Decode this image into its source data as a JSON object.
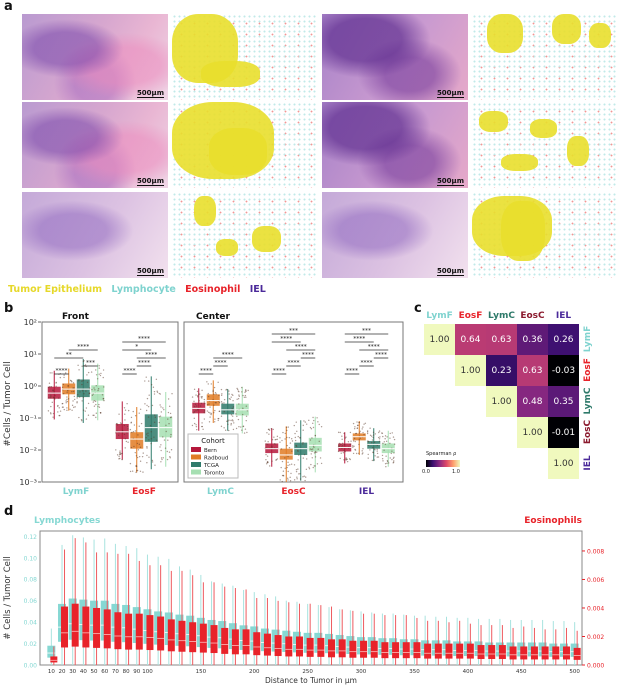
{
  "panel_labels": {
    "a": "a",
    "b": "b",
    "c": "c",
    "d": "d"
  },
  "panel_a": {
    "scale_bar": "500μm",
    "legend": [
      {
        "label": "Tumor Epithelium",
        "color": "#e6d82a"
      },
      {
        "label": "Lymphocyte",
        "color": "#7fd3cf"
      },
      {
        "label": "Eosinophil",
        "color": "#e8232a"
      },
      {
        "label": "IEL",
        "color": "#4b2a9a"
      }
    ]
  },
  "chart_data": [
    {
      "id": "panel_b",
      "type": "box",
      "ylabel": "#Cells / Tumor Cell",
      "yscale": "log",
      "ylim": [
        0.001,
        100
      ],
      "yticks": [
        "10⁻³",
        "10⁻²",
        "10⁻¹",
        "10⁰",
        "10¹",
        "10²"
      ],
      "legend_title": "Cohort",
      "legend_placement": "bottom-left",
      "cohorts": [
        {
          "name": "Bern",
          "color": "#b5173b"
        },
        {
          "name": "Radboud",
          "color": "#e07b24"
        },
        {
          "name": "TCGA",
          "color": "#2e7a6a"
        },
        {
          "name": "Toronto",
          "color": "#a6dfb2"
        }
      ],
      "facets": [
        {
          "title": "Front",
          "categories": [
            {
              "name": "LymF",
              "color": "#7fd3cf",
              "medians": [
                0.6,
                0.8,
                0.8,
                0.6
              ],
              "q1": [
                0.4,
                0.55,
                0.45,
                0.35
              ],
              "q3": [
                0.95,
                1.2,
                1.6,
                1.05
              ],
              "min": [
                0.09,
                0.17,
                0.07,
                0.085
              ],
              "max": [
                3.0,
                3.5,
                7.0,
                5.0
              ],
              "brackets": [
                [
                  "****",
                  0,
                  1
                ],
                [
                  "***",
                  2,
                  3
                ],
                [
                  "**",
                  0,
                  2
                ],
                [
                  "****",
                  1,
                  3
                ]
              ]
            },
            {
              "name": "EosF",
              "color": "#e8232a",
              "medians": [
                0.037,
                0.022,
                0.05,
                0.05
              ],
              "q1": [
                0.022,
                0.011,
                0.018,
                0.025
              ],
              "q3": [
                0.065,
                0.036,
                0.13,
                0.11
              ],
              "min": [
                0.005,
                0.002,
                0.0025,
                0.003
              ],
              "max": [
                0.33,
                0.22,
                2.0,
                0.65
              ],
              "brackets": [
                [
                  "****",
                  0,
                  1
                ],
                [
                  "****",
                  1,
                  2
                ],
                [
                  "****",
                  1,
                  3
                ],
                [
                  "*",
                  0,
                  2
                ],
                [
                  "****",
                  0,
                  3
                ]
              ]
            }
          ]
        },
        {
          "title": "Center",
          "categories": [
            {
              "name": "LymC",
              "color": "#7fd3cf",
              "medians": [
                0.2,
                0.35,
                0.18,
                0.18
              ],
              "q1": [
                0.14,
                0.24,
                0.13,
                0.12
              ],
              "q3": [
                0.3,
                0.55,
                0.28,
                0.28
              ],
              "min": [
                0.04,
                0.07,
                0.04,
                0.033
              ],
              "max": [
                0.85,
                1.5,
                0.8,
                0.95
              ],
              "brackets": [
                [
                  "****",
                  0,
                  1
                ],
                [
                  "****",
                  1,
                  2
                ],
                [
                  "****",
                  1,
                  3
                ]
              ]
            },
            {
              "name": "EosC",
              "color": "#e8232a",
              "medians": [
                0.011,
                0.007,
                0.011,
                0.014
              ],
              "q1": [
                0.008,
                0.005,
                0.007,
                0.009
              ],
              "q3": [
                0.016,
                0.011,
                0.017,
                0.024
              ],
              "min": [
                0.003,
                0.001,
                0.0011,
                0.002
              ],
              "max": [
                0.048,
                0.055,
                0.085,
                0.11
              ],
              "brackets": [
                [
                  "****",
                  0,
                  1
                ],
                [
                  "****",
                  1,
                  2
                ],
                [
                  "****",
                  2,
                  3
                ],
                [
                  "****",
                  1,
                  3
                ],
                [
                  "****",
                  0,
                  2
                ],
                [
                  "***",
                  0,
                  3
                ]
              ]
            },
            {
              "name": "IEL",
              "color": "#4b2a9a",
              "medians": [
                0.012,
                0.026,
                0.015,
                0.011
              ],
              "q1": [
                0.009,
                0.02,
                0.011,
                0.008
              ],
              "q3": [
                0.016,
                0.033,
                0.019,
                0.016
              ],
              "min": [
                0.0038,
                0.007,
                0.0045,
                0.003
              ],
              "max": [
                0.036,
                0.08,
                0.048,
                0.04
              ],
              "brackets": [
                [
                  "****",
                  0,
                  1
                ],
                [
                  "****",
                  1,
                  2
                ],
                [
                  "****",
                  2,
                  3
                ],
                [
                  "****",
                  1,
                  3
                ],
                [
                  "****",
                  0,
                  2
                ],
                [
                  "***",
                  0,
                  3
                ]
              ]
            }
          ]
        }
      ]
    },
    {
      "id": "panel_c",
      "type": "heatmap",
      "labels": [
        "LymF",
        "EosF",
        "LymC",
        "EosC",
        "IEL"
      ],
      "label_colors": [
        "#7fd3cf",
        "#e8232a",
        "#2e7a6a",
        "#8b1a2e",
        "#4b2a9a"
      ],
      "matrix": [
        [
          1.0,
          0.64,
          0.63,
          0.36,
          0.26
        ],
        [
          null,
          1.0,
          0.23,
          0.63,
          -0.03
        ],
        [
          null,
          null,
          1.0,
          0.48,
          0.35
        ],
        [
          null,
          null,
          null,
          1.0,
          -0.01
        ],
        [
          null,
          null,
          null,
          null,
          1.0
        ]
      ],
      "colorbar": {
        "title": "Spearman ρ",
        "min_label": "0.0",
        "max_label": "1.0",
        "range": [
          0,
          1
        ]
      }
    },
    {
      "id": "panel_d",
      "type": "box",
      "xlabel": "Distance to Tumor in μm",
      "ylabel": "# Cells / Tumor Cell",
      "left_series_label": "Lymphocytes",
      "right_series_label": "Eosinophils",
      "left_color": "#86d8d3",
      "right_color": "#e8232a",
      "left_ylim": [
        0,
        0.125
      ],
      "left_yticks": [
        "0.00",
        "0.02",
        "0.04",
        "0.06",
        "0.08",
        "0.10",
        "0.12"
      ],
      "right_ylim": [
        0,
        0.0094
      ],
      "right_yticks": [
        "0.000",
        "0.002",
        "0.004",
        "0.006",
        "0.008"
      ],
      "xticks": [
        "10",
        "20",
        "30",
        "40",
        "50",
        "60",
        "70",
        "80",
        "90",
        "100",
        "150",
        "200",
        "250",
        "300",
        "350",
        "400",
        "450",
        "500"
      ],
      "x_values": [
        10,
        20,
        30,
        40,
        50,
        60,
        70,
        80,
        90,
        100,
        110,
        120,
        130,
        140,
        150,
        160,
        170,
        180,
        190,
        200,
        210,
        220,
        230,
        240,
        250,
        260,
        270,
        280,
        290,
        300,
        310,
        320,
        330,
        340,
        350,
        360,
        370,
        380,
        390,
        400,
        410,
        420,
        430,
        440,
        450,
        460,
        470,
        480,
        490,
        500
      ],
      "lym_q3": [
        0.018,
        0.057,
        0.062,
        0.061,
        0.06,
        0.06,
        0.057,
        0.056,
        0.054,
        0.052,
        0.05,
        0.049,
        0.047,
        0.046,
        0.044,
        0.042,
        0.041,
        0.039,
        0.037,
        0.036,
        0.034,
        0.033,
        0.032,
        0.031,
        0.03,
        0.03,
        0.029,
        0.028,
        0.027,
        0.026,
        0.026,
        0.025,
        0.025,
        0.024,
        0.024,
        0.023,
        0.023,
        0.023,
        0.022,
        0.022,
        0.022,
        0.021,
        0.021,
        0.021,
        0.021,
        0.021,
        0.021,
        0.02,
        0.02,
        0.02
      ],
      "lym_max": [
        0.034,
        0.112,
        0.121,
        0.119,
        0.117,
        0.118,
        0.113,
        0.111,
        0.109,
        0.103,
        0.101,
        0.099,
        0.092,
        0.089,
        0.084,
        0.078,
        0.076,
        0.074,
        0.07,
        0.068,
        0.066,
        0.064,
        0.06,
        0.059,
        0.057,
        0.056,
        0.054,
        0.052,
        0.051,
        0.05,
        0.049,
        0.048,
        0.048,
        0.047,
        0.046,
        0.046,
        0.045,
        0.045,
        0.044,
        0.044,
        0.043,
        0.043,
        0.043,
        0.042,
        0.042,
        0.042,
        0.042,
        0.041,
        0.041,
        0.04
      ],
      "eos_q3": [
        0.0006,
        0.0041,
        0.0043,
        0.0041,
        0.004,
        0.0039,
        0.0037,
        0.0036,
        0.0036,
        0.0035,
        0.0034,
        0.0032,
        0.0031,
        0.003,
        0.0029,
        0.0028,
        0.0026,
        0.0025,
        0.0025,
        0.0023,
        0.0022,
        0.0021,
        0.002,
        0.002,
        0.0019,
        0.0019,
        0.0018,
        0.0018,
        0.0017,
        0.0017,
        0.0017,
        0.0016,
        0.0016,
        0.0016,
        0.0016,
        0.0015,
        0.0015,
        0.0015,
        0.0015,
        0.0015,
        0.0014,
        0.0014,
        0.0014,
        0.0013,
        0.0013,
        0.0013,
        0.0013,
        0.0013,
        0.0013,
        0.0012
      ],
      "eos_max": [
        0.0013,
        0.0081,
        0.0089,
        0.0086,
        0.0079,
        0.0079,
        0.0078,
        0.0078,
        0.0073,
        0.007,
        0.007,
        0.0066,
        0.0066,
        0.0063,
        0.0058,
        0.0058,
        0.0055,
        0.0054,
        0.0053,
        0.0047,
        0.0047,
        0.0045,
        0.0044,
        0.0043,
        0.0043,
        0.0042,
        0.0041,
        0.0039,
        0.0038,
        0.0036,
        0.0036,
        0.0035,
        0.0035,
        0.0035,
        0.0033,
        0.0031,
        0.0031,
        0.003,
        0.0031,
        0.0029,
        0.0028,
        0.0028,
        0.0028,
        0.0026,
        0.0027,
        0.0026,
        0.0025,
        0.0025,
        0.0026,
        0.0024
      ]
    }
  ]
}
